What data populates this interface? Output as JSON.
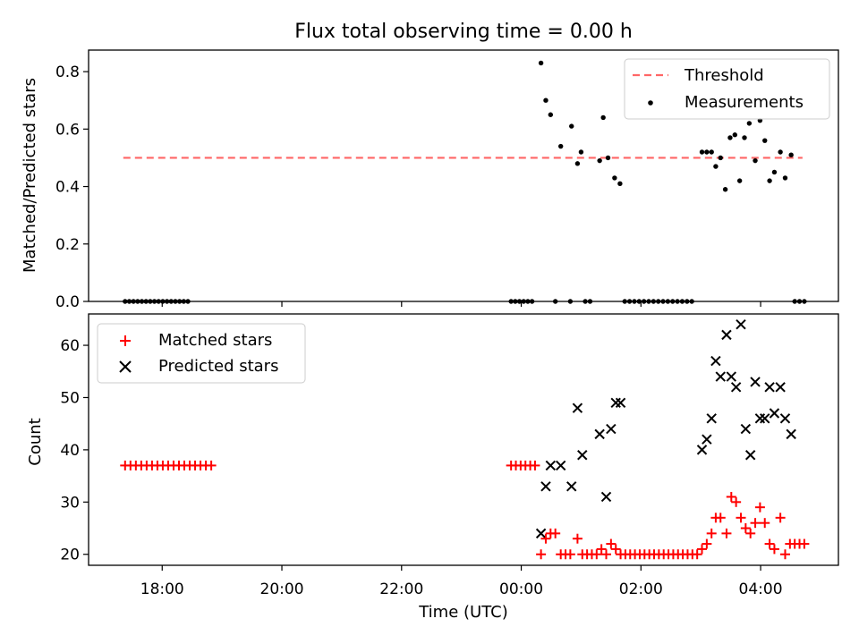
{
  "chart_data": {
    "title": "Flux total observing time = 0.00 h",
    "xlabel": "Time (UTC)",
    "x_ticks": [
      {
        "t": -6,
        "label": "18:00"
      },
      {
        "t": -4,
        "label": "20:00"
      },
      {
        "t": -2,
        "label": "22:00"
      },
      {
        "t": 0,
        "label": "00:00"
      },
      {
        "t": 2,
        "label": "02:00"
      },
      {
        "t": 4,
        "label": "04:00"
      }
    ],
    "xlim": [
      -7.23,
      5.3
    ],
    "panels": [
      {
        "type": "scatter",
        "ylabel": "Matched/Predicted stars",
        "ylim": [
          0,
          0.875
        ],
        "yticks": [
          0.0,
          0.2,
          0.4,
          0.6,
          0.8
        ],
        "legend": "top-right",
        "threshold": {
          "name": "Threshold",
          "color": "#ff6666",
          "value": 0.5,
          "x_range": [
            -6.65,
            4.7
          ]
        },
        "measurements": {
          "name": "Measurements",
          "color": "#000000",
          "points": [
            [
              -6.62,
              0
            ],
            [
              -6.55,
              0
            ],
            [
              -6.48,
              0
            ],
            [
              -6.41,
              0
            ],
            [
              -6.34,
              0
            ],
            [
              -6.27,
              0
            ],
            [
              -6.2,
              0
            ],
            [
              -6.13,
              0
            ],
            [
              -6.06,
              0
            ],
            [
              -5.99,
              0
            ],
            [
              -5.92,
              0
            ],
            [
              -5.85,
              0
            ],
            [
              -5.78,
              0
            ],
            [
              -5.71,
              0
            ],
            [
              -5.64,
              0
            ],
            [
              -5.57,
              0
            ],
            [
              -0.17,
              0
            ],
            [
              -0.1,
              0
            ],
            [
              -0.03,
              0
            ],
            [
              0.04,
              0
            ],
            [
              0.11,
              0
            ],
            [
              0.18,
              0
            ],
            [
              0.57,
              0
            ],
            [
              0.82,
              0
            ],
            [
              1.07,
              0
            ],
            [
              1.15,
              0
            ],
            [
              1.73,
              0
            ],
            [
              1.81,
              0
            ],
            [
              1.89,
              0
            ],
            [
              1.97,
              0
            ],
            [
              2.05,
              0
            ],
            [
              2.13,
              0
            ],
            [
              2.21,
              0
            ],
            [
              2.29,
              0
            ],
            [
              2.37,
              0
            ],
            [
              2.45,
              0
            ],
            [
              2.53,
              0
            ],
            [
              2.61,
              0
            ],
            [
              2.69,
              0
            ],
            [
              2.77,
              0
            ],
            [
              2.85,
              0
            ],
            [
              4.57,
              0
            ],
            [
              4.65,
              0
            ],
            [
              4.73,
              0
            ],
            [
              0.33,
              0.83
            ],
            [
              0.41,
              0.7
            ],
            [
              0.49,
              0.65
            ],
            [
              0.66,
              0.54
            ],
            [
              0.84,
              0.61
            ],
            [
              0.94,
              0.48
            ],
            [
              1.0,
              0.52
            ],
            [
              1.31,
              0.49
            ],
            [
              1.37,
              0.64
            ],
            [
              1.45,
              0.5
            ],
            [
              1.56,
              0.43
            ],
            [
              1.65,
              0.41
            ],
            [
              3.02,
              0.52
            ],
            [
              3.1,
              0.52
            ],
            [
              3.18,
              0.52
            ],
            [
              3.25,
              0.47
            ],
            [
              3.33,
              0.5
            ],
            [
              3.41,
              0.39
            ],
            [
              3.49,
              0.57
            ],
            [
              3.57,
              0.58
            ],
            [
              3.65,
              0.42
            ],
            [
              3.73,
              0.57
            ],
            [
              3.81,
              0.62
            ],
            [
              3.91,
              0.49
            ],
            [
              3.99,
              0.63
            ],
            [
              4.07,
              0.56
            ],
            [
              4.15,
              0.42
            ],
            [
              4.23,
              0.45
            ],
            [
              4.33,
              0.52
            ],
            [
              4.41,
              0.43
            ],
            [
              4.51,
              0.51
            ]
          ]
        }
      },
      {
        "type": "scatter",
        "ylabel": "Count",
        "ylim": [
          17.9,
          66
        ],
        "yticks": [
          20,
          30,
          40,
          50,
          60
        ],
        "legend": "top-left",
        "matched": {
          "name": "Matched stars",
          "color": "#ff0000",
          "points": [
            [
              -6.62,
              37
            ],
            [
              -6.53,
              37
            ],
            [
              -6.44,
              37
            ],
            [
              -6.35,
              37
            ],
            [
              -6.26,
              37
            ],
            [
              -6.17,
              37
            ],
            [
              -6.08,
              37
            ],
            [
              -5.99,
              37
            ],
            [
              -5.9,
              37
            ],
            [
              -5.81,
              37
            ],
            [
              -5.72,
              37
            ],
            [
              -5.63,
              37
            ],
            [
              -5.54,
              37
            ],
            [
              -5.45,
              37
            ],
            [
              -5.36,
              37
            ],
            [
              -5.27,
              37
            ],
            [
              -5.18,
              37
            ],
            [
              -0.17,
              37
            ],
            [
              -0.09,
              37
            ],
            [
              -0.01,
              37
            ],
            [
              0.07,
              37
            ],
            [
              0.15,
              37
            ],
            [
              0.23,
              37
            ],
            [
              0.33,
              20
            ],
            [
              0.41,
              23
            ],
            [
              0.49,
              24
            ],
            [
              0.57,
              24
            ],
            [
              0.66,
              20
            ],
            [
              0.74,
              20
            ],
            [
              0.82,
              20
            ],
            [
              0.94,
              23
            ],
            [
              1.02,
              20
            ],
            [
              1.1,
              20
            ],
            [
              1.18,
              20
            ],
            [
              1.26,
              20
            ],
            [
              1.34,
              21
            ],
            [
              1.42,
              20
            ],
            [
              1.5,
              22
            ],
            [
              1.58,
              21
            ],
            [
              1.66,
              20
            ],
            [
              1.74,
              20
            ],
            [
              1.82,
              20
            ],
            [
              1.9,
              20
            ],
            [
              1.98,
              20
            ],
            [
              2.06,
              20
            ],
            [
              2.14,
              20
            ],
            [
              2.22,
              20
            ],
            [
              2.3,
              20
            ],
            [
              2.38,
              20
            ],
            [
              2.46,
              20
            ],
            [
              2.54,
              20
            ],
            [
              2.62,
              20
            ],
            [
              2.7,
              20
            ],
            [
              2.78,
              20
            ],
            [
              2.86,
              20
            ],
            [
              2.94,
              20
            ],
            [
              3.02,
              21
            ],
            [
              3.1,
              22
            ],
            [
              3.18,
              24
            ],
            [
              3.25,
              27
            ],
            [
              3.33,
              27
            ],
            [
              3.43,
              24
            ],
            [
              3.51,
              31
            ],
            [
              3.59,
              30
            ],
            [
              3.67,
              27
            ],
            [
              3.75,
              25
            ],
            [
              3.83,
              24
            ],
            [
              3.91,
              26
            ],
            [
              3.99,
              29
            ],
            [
              4.07,
              26
            ],
            [
              4.15,
              22
            ],
            [
              4.23,
              21
            ],
            [
              4.33,
              27
            ],
            [
              4.41,
              20
            ],
            [
              4.49,
              22
            ],
            [
              4.57,
              22
            ],
            [
              4.65,
              22
            ],
            [
              4.73,
              22
            ]
          ]
        },
        "predicted": {
          "name": "Predicted stars",
          "color": "#000000",
          "points": [
            [
              0.33,
              24
            ],
            [
              0.41,
              33
            ],
            [
              0.49,
              37
            ],
            [
              0.66,
              37
            ],
            [
              0.84,
              33
            ],
            [
              0.94,
              48
            ],
            [
              1.02,
              39
            ],
            [
              1.31,
              43
            ],
            [
              1.42,
              31
            ],
            [
              1.5,
              44
            ],
            [
              1.58,
              49
            ],
            [
              1.66,
              49
            ],
            [
              3.02,
              40
            ],
            [
              3.1,
              42
            ],
            [
              3.18,
              46
            ],
            [
              3.25,
              57
            ],
            [
              3.33,
              54
            ],
            [
              3.43,
              62
            ],
            [
              3.51,
              54
            ],
            [
              3.59,
              52
            ],
            [
              3.67,
              64
            ],
            [
              3.75,
              44
            ],
            [
              3.83,
              39
            ],
            [
              3.91,
              53
            ],
            [
              3.99,
              46
            ],
            [
              4.07,
              46
            ],
            [
              4.15,
              52
            ],
            [
              4.23,
              47
            ],
            [
              4.33,
              52
            ],
            [
              4.41,
              46
            ],
            [
              4.51,
              43
            ]
          ]
        }
      }
    ]
  }
}
